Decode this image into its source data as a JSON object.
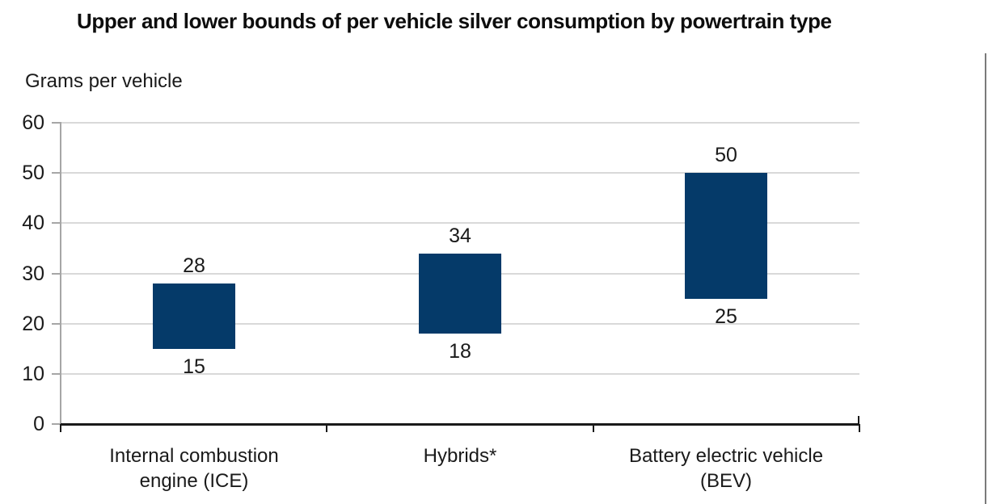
{
  "page": {
    "title": "Upper and lower bounds of per vehicle silver consumption by powertrain type",
    "y_axis_title": "Grams per vehicle"
  },
  "colors": {
    "bar_fill": "#053a69",
    "gridline": "#d9d9d9",
    "x_axis": "#1a1a1a",
    "y_axis": "#a6a6a6",
    "text": "#1a1a1a",
    "page_border": "#7a7a7a"
  },
  "chart_data": {
    "type": "bar",
    "subtype": "floating-range-column",
    "title": "Upper and lower bounds of per vehicle silver consumption by powertrain type",
    "xlabel": "",
    "ylabel": "Grams per vehicle",
    "categories": [
      "Internal combustion engine (ICE)",
      "Hybrids*",
      "Battery electric vehicle (BEV)"
    ],
    "category_label_lines": [
      [
        "Internal combustion",
        "engine (ICE)"
      ],
      [
        "Hybrids*"
      ],
      [
        "Battery electric vehicle",
        "(BEV)"
      ]
    ],
    "series": [
      {
        "name": "lower bound",
        "values": [
          15,
          18,
          25
        ]
      },
      {
        "name": "upper bound",
        "values": [
          28,
          34,
          50
        ]
      }
    ],
    "ranges": [
      {
        "category": "Internal combustion engine (ICE)",
        "low": 15,
        "high": 28
      },
      {
        "category": "Hybrids*",
        "low": 18,
        "high": 34
      },
      {
        "category": "Battery electric vehicle (BEV)",
        "low": 25,
        "high": 50
      }
    ],
    "ylim": [
      0,
      60
    ],
    "yticks": [
      0,
      10,
      20,
      30,
      40,
      50,
      60
    ],
    "grid": "horizontal",
    "legend": "none"
  }
}
